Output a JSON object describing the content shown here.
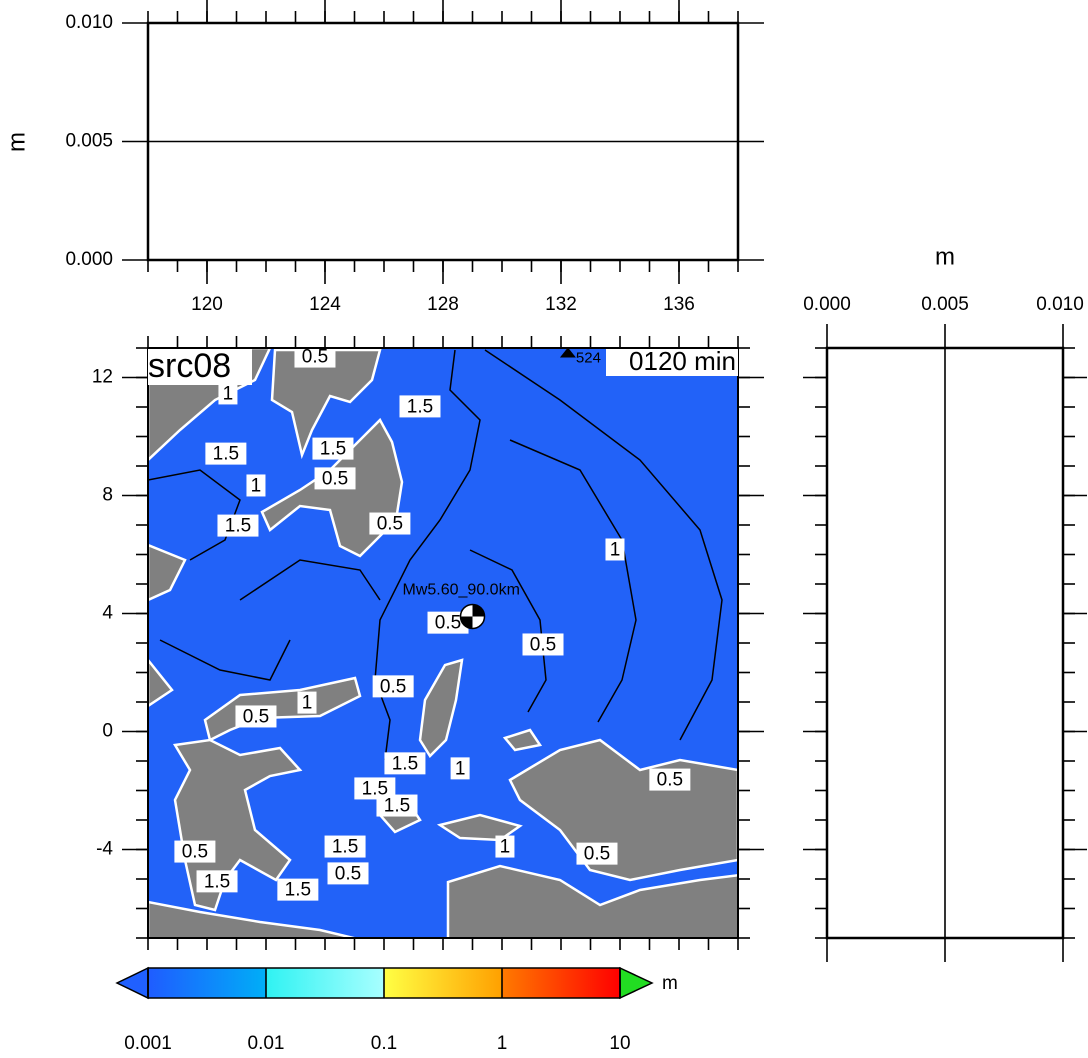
{
  "chart_data": [
    {
      "type": "line",
      "ylabel": "m",
      "xlim": [
        118,
        138
      ],
      "xticks": [
        120,
        124,
        128,
        132,
        136
      ],
      "ylim": [
        0,
        0.01
      ],
      "yticks": [
        {
          "value": 0,
          "label": "0.000"
        },
        {
          "value": 0.005,
          "label": "0.005"
        },
        {
          "value": 0.01,
          "label": "0.010"
        }
      ],
      "hline": 0.005,
      "x": [
        118,
        138
      ],
      "values": [
        0,
        0
      ]
    },
    {
      "type": "map",
      "title": "src08",
      "time_label": "0120 min",
      "xlim": [
        118,
        138
      ],
      "ylim": [
        -7,
        13
      ],
      "yticks": [
        -4,
        0,
        4,
        8,
        12
      ],
      "epicenter": {
        "label": "Mw5.60_90.0km",
        "lon": 129.0,
        "lat": 3.9
      },
      "station": {
        "label": "524",
        "lon": 132.98,
        "lat": 12.71
      },
      "contour_labels": [
        {
          "text": "0.5",
          "lon": 123.66,
          "lat": 12.71
        },
        {
          "text": "1",
          "lon": 120.71,
          "lat": 11.46
        },
        {
          "text": "1.5",
          "lon": 127.22,
          "lat": 11.02
        },
        {
          "text": "1.5",
          "lon": 120.64,
          "lat": 9.42
        },
        {
          "text": "1.5",
          "lon": 124.27,
          "lat": 9.59
        },
        {
          "text": "0.5",
          "lon": 124.34,
          "lat": 8.58
        },
        {
          "text": "1",
          "lon": 121.66,
          "lat": 8.34
        },
        {
          "text": "1.5",
          "lon": 121.05,
          "lat": 6.98
        },
        {
          "text": "0.5",
          "lon": 126.2,
          "lat": 7.05
        },
        {
          "text": "1",
          "lon": 133.83,
          "lat": 6.17
        },
        {
          "text": "0.5",
          "lon": 128.17,
          "lat": 3.69
        },
        {
          "text": "0.5",
          "lon": 131.39,
          "lat": 2.95
        },
        {
          "text": "0.5",
          "lon": 126.31,
          "lat": 1.53
        },
        {
          "text": "1",
          "lon": 123.39,
          "lat": 0.98
        },
        {
          "text": "0.5",
          "lon": 121.66,
          "lat": 0.51
        },
        {
          "text": "1.5",
          "lon": 126.71,
          "lat": -1.08
        },
        {
          "text": "1.5",
          "lon": 125.69,
          "lat": -1.93
        },
        {
          "text": "1.5",
          "lon": 126.44,
          "lat": -2.51
        },
        {
          "text": "1",
          "lon": 128.58,
          "lat": -1.25
        },
        {
          "text": "0.5",
          "lon": 135.69,
          "lat": -1.63
        },
        {
          "text": "1.5",
          "lon": 124.68,
          "lat": -3.9
        },
        {
          "text": "0.5",
          "lon": 124.78,
          "lat": -4.81
        },
        {
          "text": "1.5",
          "lon": 123.08,
          "lat": -5.36
        },
        {
          "text": "1.5",
          "lon": 120.34,
          "lat": -5.08
        },
        {
          "text": "0.5",
          "lon": 119.59,
          "lat": -4.07
        },
        {
          "text": "1",
          "lon": 130.1,
          "lat": -3.9
        },
        {
          "text": "0.5",
          "lon": 133.22,
          "lat": -4.14
        }
      ]
    },
    {
      "type": "profile",
      "xlabel": "m",
      "xlim": [
        0,
        0.01
      ],
      "xticks": [
        {
          "value": 0,
          "label": "0.000"
        },
        {
          "value": 0.005,
          "label": "0.005"
        },
        {
          "value": 0.01,
          "label": "0.010"
        }
      ],
      "vline": 0.005,
      "ylim": [
        -7,
        13
      ],
      "y": [
        -7,
        13
      ],
      "values": [
        0,
        0
      ]
    },
    {
      "type": "colorbar",
      "label": "m",
      "ticks": [
        0.001,
        0.01,
        0.1,
        1,
        10
      ],
      "colors": [
        [
          "#1f5cff",
          "#00aef7"
        ],
        [
          "#2ff2f2",
          "#a8ffff"
        ],
        [
          "#ffff44",
          "#ffa000"
        ],
        [
          "#ff7a00",
          "#ff0000"
        ]
      ],
      "under_color": "#2060ff",
      "over_color": "#22dd22"
    }
  ]
}
